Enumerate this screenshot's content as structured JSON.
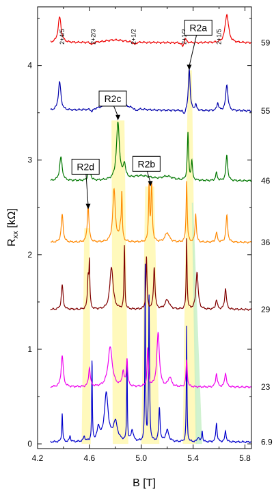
{
  "chart_data": {
    "type": "line",
    "title": "",
    "xlabel": "B [T]",
    "ylabel_main": "R",
    "ylabel_sub": "xx",
    "ylabel_unit": " [kΩ]",
    "xlim": [
      4.2,
      5.85
    ],
    "ylim": [
      -0.05,
      4.62
    ],
    "xticks": [
      "4.2",
      "4.6",
      "5.0",
      "5.4",
      "5.8"
    ],
    "xtick_values": [
      4.2,
      4.6,
      5.0,
      5.4,
      5.8
    ],
    "yticks": [
      "0",
      "1",
      "2",
      "3",
      "4"
    ],
    "ytick_values": [
      0,
      1,
      2,
      3,
      4
    ],
    "fraction_labels": [
      {
        "text": "2+4/5",
        "B": 4.39
      },
      {
        "text": "2+2/3",
        "B": 4.63
      },
      {
        "text": "2+1/2",
        "B": 4.94
      },
      {
        "text": "2+1/3",
        "B": 5.33
      },
      {
        "text": "2+1/5",
        "B": 5.6
      }
    ],
    "series": [
      {
        "label": "6.9",
        "color": "#0000cc",
        "offset": 0.0,
        "peaks": [
          [
            4.39,
            0.3,
            0.004
          ],
          [
            4.45,
            0.06,
            0.006
          ],
          [
            4.56,
            0.05,
            0.008
          ],
          [
            4.62,
            0.85,
            0.003
          ],
          [
            4.67,
            0.14,
            0.012
          ],
          [
            4.73,
            0.5,
            0.018
          ],
          [
            4.8,
            0.2,
            0.02
          ],
          [
            4.89,
            0.88,
            0.003
          ],
          [
            4.93,
            0.12,
            0.01
          ],
          [
            5.03,
            1.9,
            0.003
          ],
          [
            5.06,
            1.55,
            0.004
          ],
          [
            5.14,
            0.35,
            0.006
          ],
          [
            5.2,
            0.12,
            0.015
          ],
          [
            5.35,
            1.22,
            0.003
          ],
          [
            5.44,
            0.05,
            0.008
          ],
          [
            5.47,
            0.12,
            0.004
          ],
          [
            5.58,
            0.2,
            0.006
          ],
          [
            5.65,
            0.12,
            0.006
          ]
        ],
        "base": 0.02
      },
      {
        "label": "23",
        "color": "#ee00ee",
        "offset": 0.58,
        "peaks": [
          [
            4.39,
            0.33,
            0.01
          ],
          [
            4.6,
            0.2,
            0.008
          ],
          [
            4.76,
            0.42,
            0.02
          ],
          [
            4.86,
            0.15,
            0.01
          ],
          [
            4.89,
            0.28,
            0.006
          ],
          [
            5.05,
            0.4,
            0.006
          ],
          [
            5.13,
            0.57,
            0.012
          ],
          [
            5.22,
            0.1,
            0.015
          ],
          [
            5.35,
            0.28,
            0.006
          ],
          [
            5.58,
            0.14,
            0.008
          ],
          [
            5.65,
            0.15,
            0.008
          ]
        ],
        "base": 0.02
      },
      {
        "label": "29",
        "color": "#800000",
        "offset": 1.39,
        "peaks": [
          [
            4.39,
            0.26,
            0.008
          ],
          [
            4.59,
            0.33,
            0.006
          ],
          [
            4.6,
            0.46,
            0.004
          ],
          [
            4.77,
            0.45,
            0.015
          ],
          [
            4.87,
            0.66,
            0.004
          ],
          [
            5.04,
            0.55,
            0.005
          ],
          [
            5.1,
            0.44,
            0.007
          ],
          [
            5.2,
            0.1,
            0.02
          ],
          [
            5.35,
            0.75,
            0.004
          ],
          [
            5.43,
            0.4,
            0.01
          ],
          [
            5.58,
            0.1,
            0.008
          ],
          [
            5.65,
            0.22,
            0.008
          ]
        ],
        "base": 0.03
      },
      {
        "label": "36",
        "color": "#ff8800",
        "offset": 2.1,
        "peaks": [
          [
            4.39,
            0.29,
            0.009
          ],
          [
            4.59,
            0.38,
            0.008
          ],
          [
            4.79,
            0.55,
            0.012
          ],
          [
            4.84,
            0.15,
            0.01
          ],
          [
            4.85,
            0.45,
            0.004
          ],
          [
            5.06,
            0.58,
            0.005
          ],
          [
            5.08,
            0.6,
            0.006
          ],
          [
            5.2,
            0.1,
            0.02
          ],
          [
            5.35,
            0.65,
            0.005
          ],
          [
            5.42,
            0.3,
            0.006
          ],
          [
            5.58,
            0.1,
            0.008
          ],
          [
            5.66,
            0.28,
            0.008
          ]
        ],
        "base": 0.03
      },
      {
        "label": "46",
        "color": "#007700",
        "offset": 2.78,
        "peaks": [
          [
            4.38,
            0.25,
            0.012
          ],
          [
            4.6,
            0.2,
            0.008
          ],
          [
            4.82,
            0.6,
            0.014
          ],
          [
            4.87,
            0.15,
            0.01
          ],
          [
            5.0,
            0.05,
            0.1
          ],
          [
            5.2,
            0.04,
            0.05
          ],
          [
            5.36,
            0.5,
            0.006
          ],
          [
            5.39,
            0.2,
            0.006
          ],
          [
            5.58,
            0.08,
            0.008
          ],
          [
            5.66,
            0.27,
            0.008
          ]
        ],
        "base": 0.0
      },
      {
        "label": "55",
        "color": "#0000aa",
        "offset": 3.5,
        "peaks": [
          [
            4.37,
            0.3,
            0.012
          ],
          [
            4.62,
            -0.03,
            0.01
          ],
          [
            4.8,
            0.1,
            0.1
          ],
          [
            4.96,
            -0.03,
            0.01
          ],
          [
            5.33,
            -0.05,
            0.01
          ],
          [
            5.37,
            0.45,
            0.008
          ],
          [
            5.42,
            0.06,
            0.008
          ],
          [
            5.59,
            0.08,
            0.008
          ],
          [
            5.66,
            0.28,
            0.01
          ]
        ],
        "base": 0.02
      },
      {
        "label": "59",
        "color": "#ee0000",
        "offset": 4.24,
        "peaks": [
          [
            4.37,
            0.27,
            0.014
          ],
          [
            4.62,
            -0.03,
            0.01
          ],
          [
            4.8,
            0.03,
            0.1
          ],
          [
            4.95,
            -0.03,
            0.01
          ],
          [
            5.32,
            -0.05,
            0.01
          ],
          [
            5.34,
            0.05,
            0.01
          ],
          [
            5.66,
            0.3,
            0.016
          ]
        ],
        "base": 0.0
      }
    ],
    "shaded_bands": [
      {
        "color": "#fff8b0",
        "x_bottom": [
          4.54,
          4.61
        ],
        "x_top": [
          4.56,
          4.6
        ],
        "y_top": 2.28
      },
      {
        "color": "#fff8b0",
        "x_bottom": [
          4.78,
          4.9
        ],
        "x_top": [
          4.77,
          4.87
        ],
        "y_top": 3.42
      },
      {
        "color": "#fff8b0",
        "x_bottom": [
          5.0,
          5.14
        ],
        "x_top": [
          5.03,
          5.1
        ],
        "y_top": 2.72
      },
      {
        "color": "#fff8b0",
        "x_bottom": [
          5.32,
          5.43
        ],
        "x_top": [
          5.36,
          5.39
        ],
        "y_top": 3.95
      },
      {
        "color": "#c8f0c8",
        "x_bottom": [
          5.42,
          5.47
        ],
        "x_top": [
          5.39,
          5.4
        ],
        "y_top": 2.55
      }
    ],
    "annotations": [
      {
        "text": "R2a",
        "box_B": 5.44,
        "box_R": 4.4,
        "arrow_B": 5.37,
        "arrow_R": 3.95
      },
      {
        "text": "R2b",
        "box_B": 5.04,
        "box_R": 2.96,
        "arrow_B": 5.07,
        "arrow_R": 2.72
      },
      {
        "text": "R2c",
        "box_B": 4.78,
        "box_R": 3.65,
        "arrow_B": 4.82,
        "arrow_R": 3.42
      },
      {
        "text": "R2d",
        "box_B": 4.57,
        "box_R": 2.93,
        "arrow_B": 4.59,
        "arrow_R": 2.48
      }
    ]
  }
}
